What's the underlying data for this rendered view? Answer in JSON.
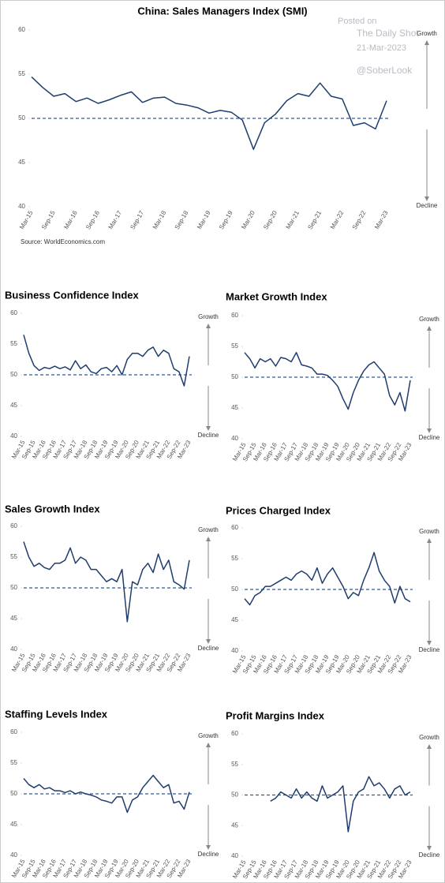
{
  "chart_data": [
    {
      "type": "line",
      "title": "China: Sales Managers Index (SMI)",
      "source": "Source: WorldEconomics.com",
      "categories": [
        "Mar-15",
        null,
        "Sep-15",
        null,
        "Mar-16",
        null,
        "Sep-16",
        null,
        "Mar-17",
        null,
        "Sep-17",
        null,
        "Mar-18",
        null,
        "Sep-18",
        null,
        "Mar-19",
        null,
        "Sep-19",
        null,
        "Mar-20",
        null,
        "Sep-20",
        null,
        "Mar-21",
        null,
        "Sep-21",
        null,
        "Mar-22",
        null,
        "Sep-22",
        null,
        "Mar-23"
      ],
      "values": [
        54.7,
        53.5,
        52.5,
        52.8,
        51.9,
        52.3,
        51.7,
        52.1,
        52.6,
        53.0,
        51.8,
        52.3,
        52.4,
        51.7,
        51.5,
        51.2,
        50.6,
        50.9,
        50.7,
        49.8,
        46.5,
        49.5,
        50.5,
        52.0,
        52.8,
        52.5,
        54.0,
        52.5,
        52.2,
        49.2,
        49.5,
        48.8,
        52.0
      ],
      "color": "#1f3d6e",
      "ylim": [
        40,
        60
      ],
      "yticks": [
        40,
        45,
        50,
        55,
        60
      ],
      "ref_line": 50,
      "growth_label": "Growth",
      "decline_label": "Decline"
    },
    {
      "type": "line",
      "title": "Business Confidence Index",
      "categories": [
        "Mar-15",
        null,
        "Sep-15",
        null,
        "Mar-16",
        null,
        "Sep-16",
        null,
        "Mar-17",
        null,
        "Sep-17",
        null,
        "Mar-18",
        null,
        "Sep-18",
        null,
        "Mar-19",
        null,
        "Sep-19",
        null,
        "Mar-20",
        null,
        "Sep-20",
        null,
        "Mar-21",
        null,
        "Sep-21",
        null,
        "Mar-22",
        null,
        "Sep-22",
        null,
        "Mar-23"
      ],
      "values": [
        56.5,
        53.5,
        51.5,
        50.7,
        51.2,
        51.0,
        51.4,
        51.0,
        51.3,
        50.8,
        52.3,
        51.0,
        51.6,
        50.5,
        50.2,
        51.0,
        51.2,
        50.5,
        51.5,
        50.0,
        52.5,
        53.5,
        53.5,
        53.0,
        54.0,
        54.5,
        53.0,
        54.0,
        53.5,
        51.0,
        50.5,
        48.2,
        53.0
      ],
      "color": "#1f3d6e",
      "ylim": [
        40,
        60
      ],
      "yticks": [
        40,
        45,
        50,
        55,
        60
      ],
      "ref_line": 50,
      "growth_label": "Growth",
      "decline_label": "Decline"
    },
    {
      "type": "line",
      "title": "Market Growth Index",
      "categories": [
        "Mar-15",
        null,
        "Sep-15",
        null,
        "Mar-16",
        null,
        "Sep-16",
        null,
        "Mar-17",
        null,
        "Sep-17",
        null,
        "Mar-18",
        null,
        "Sep-18",
        null,
        "Mar-19",
        null,
        "Sep-19",
        null,
        "Mar-20",
        null,
        "Sep-20",
        null,
        "Mar-21",
        null,
        "Sep-21",
        null,
        "Mar-22",
        null,
        "Sep-22",
        null,
        "Mar-23"
      ],
      "values": [
        54.0,
        53.0,
        51.5,
        53.0,
        52.5,
        53.0,
        51.8,
        53.2,
        53.0,
        52.5,
        54.0,
        52.0,
        51.8,
        51.5,
        50.5,
        50.5,
        50.3,
        49.5,
        48.5,
        46.5,
        44.8,
        47.5,
        49.5,
        51.0,
        52.0,
        52.5,
        51.5,
        50.5,
        47.0,
        45.5,
        47.5,
        44.5,
        49.5
      ],
      "color": "#1f3d6e",
      "ylim": [
        40,
        60
      ],
      "yticks": [
        40,
        45,
        50,
        55,
        60
      ],
      "ref_line": 50,
      "growth_label": "Growth",
      "decline_label": "Decline"
    },
    {
      "type": "line",
      "title": "Sales Growth Index",
      "categories": [
        "Mar-15",
        null,
        "Sep-15",
        null,
        "Mar-16",
        null,
        "Sep-16",
        null,
        "Mar-17",
        null,
        "Sep-17",
        null,
        "Mar-18",
        null,
        "Sep-18",
        null,
        "Mar-19",
        null,
        "Sep-19",
        null,
        "Mar-20",
        null,
        "Sep-20",
        null,
        "Mar-21",
        null,
        "Sep-21",
        null,
        "Mar-22",
        null,
        "Sep-22",
        null,
        "Mar-23"
      ],
      "values": [
        57.5,
        55.0,
        53.5,
        54.0,
        53.3,
        53.0,
        54.0,
        54.0,
        54.5,
        56.5,
        54.0,
        55.0,
        54.5,
        53.0,
        53.0,
        52.0,
        51.0,
        51.5,
        51.0,
        53.0,
        44.5,
        51.0,
        50.5,
        53.0,
        54.0,
        52.5,
        55.5,
        53.0,
        54.5,
        51.0,
        50.5,
        49.8,
        54.5
      ],
      "color": "#1f3d6e",
      "ylim": [
        40,
        60
      ],
      "yticks": [
        40,
        45,
        50,
        55,
        60
      ],
      "ref_line": 50,
      "growth_label": "Growth",
      "decline_label": "Decline"
    },
    {
      "type": "line",
      "title": "Prices Charged Index",
      "categories": [
        "Mar-15",
        null,
        "Sep-15",
        null,
        "Mar-16",
        null,
        "Sep-16",
        null,
        "Mar-17",
        null,
        "Sep-17",
        null,
        "Mar-18",
        null,
        "Sep-18",
        null,
        "Mar-19",
        null,
        "Sep-19",
        null,
        "Mar-20",
        null,
        "Sep-20",
        null,
        "Mar-21",
        null,
        "Sep-21",
        null,
        "Mar-22",
        null,
        "Sep-22",
        null,
        "Mar-23"
      ],
      "values": [
        48.5,
        47.5,
        49.0,
        49.5,
        50.5,
        50.5,
        51.0,
        51.5,
        52.0,
        51.5,
        52.5,
        53.0,
        52.5,
        51.5,
        53.5,
        51.0,
        52.5,
        53.5,
        52.0,
        50.5,
        48.5,
        49.5,
        49.0,
        51.5,
        53.5,
        56.0,
        53.0,
        51.5,
        50.5,
        47.8,
        50.5,
        48.5,
        48.0
      ],
      "color": "#1f3d6e",
      "ylim": [
        40,
        60
      ],
      "yticks": [
        40,
        45,
        50,
        55,
        60
      ],
      "ref_line": 50,
      "growth_label": "Growth",
      "decline_label": "Decline"
    },
    {
      "type": "line",
      "title": "Staffing Levels Index",
      "categories": [
        "Mar-15",
        null,
        "Sep-15",
        null,
        "Mar-16",
        null,
        "Sep-16",
        null,
        "Mar-17",
        null,
        "Sep-17",
        null,
        "Mar-18",
        null,
        "Sep-18",
        null,
        "Mar-19",
        null,
        "Sep-19",
        null,
        "Mar-20",
        null,
        "Sep-20",
        null,
        "Mar-21",
        null,
        "Sep-21",
        null,
        "Mar-22",
        null,
        "Sep-22",
        null,
        "Mar-23"
      ],
      "values": [
        52.5,
        51.5,
        51.0,
        51.5,
        50.8,
        51.0,
        50.5,
        50.5,
        50.2,
        50.5,
        50.0,
        50.3,
        50.0,
        49.8,
        49.5,
        49.0,
        48.8,
        48.5,
        49.5,
        49.5,
        47.0,
        49.0,
        49.5,
        51.0,
        52.0,
        53.0,
        52.0,
        51.0,
        51.5,
        48.5,
        48.8,
        47.5,
        50.3
      ],
      "color": "#1f3d6e",
      "ylim": [
        40,
        60
      ],
      "yticks": [
        40,
        45,
        50,
        55,
        60
      ],
      "ref_line": 50,
      "growth_label": "Growth",
      "decline_label": "Decline"
    },
    {
      "type": "line",
      "title": "Profit Margins Index",
      "categories": [
        "Mar-15",
        null,
        "Sep-15",
        null,
        "Mar-16",
        null,
        "Sep-16",
        null,
        "Mar-17",
        null,
        "Sep-17",
        null,
        "Mar-18",
        null,
        "Sep-18",
        null,
        "Mar-19",
        null,
        "Sep-19",
        null,
        "Mar-20",
        null,
        "Sep-20",
        null,
        "Mar-21",
        null,
        "Sep-21",
        null,
        "Mar-22",
        null,
        "Sep-22",
        null,
        "Mar-23"
      ],
      "values": [
        null,
        null,
        null,
        null,
        null,
        49.0,
        49.5,
        50.5,
        50.0,
        49.5,
        51.0,
        49.5,
        50.5,
        49.5,
        49.0,
        51.5,
        49.5,
        50.0,
        50.5,
        51.5,
        44.0,
        49.0,
        50.5,
        51.0,
        53.0,
        51.5,
        52.0,
        51.0,
        49.5,
        51.0,
        51.5,
        50.0,
        50.5
      ],
      "color": "#1f3d6e",
      "ylim": [
        40,
        60
      ],
      "yticks": [
        40,
        45,
        50,
        55,
        60
      ],
      "ref_line": 50,
      "growth_label": "Growth",
      "decline_label": "Decline"
    }
  ],
  "watermark": {
    "posted": "Posted on",
    "site": "The Daily Shot",
    "date": "21-Mar-2023",
    "handle": "@SoberLook"
  }
}
